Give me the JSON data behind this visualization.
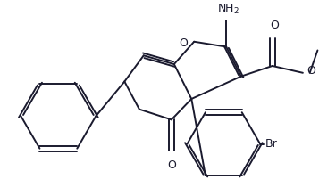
{
  "bg_color": "#ffffff",
  "line_color": "#1a1a2e",
  "line_width": 1.4,
  "font_size": 8.5,
  "figsize": [
    3.76,
    2.2
  ],
  "dpi": 100,
  "xlim": [
    0,
    376
  ],
  "ylim": [
    0,
    220
  ]
}
